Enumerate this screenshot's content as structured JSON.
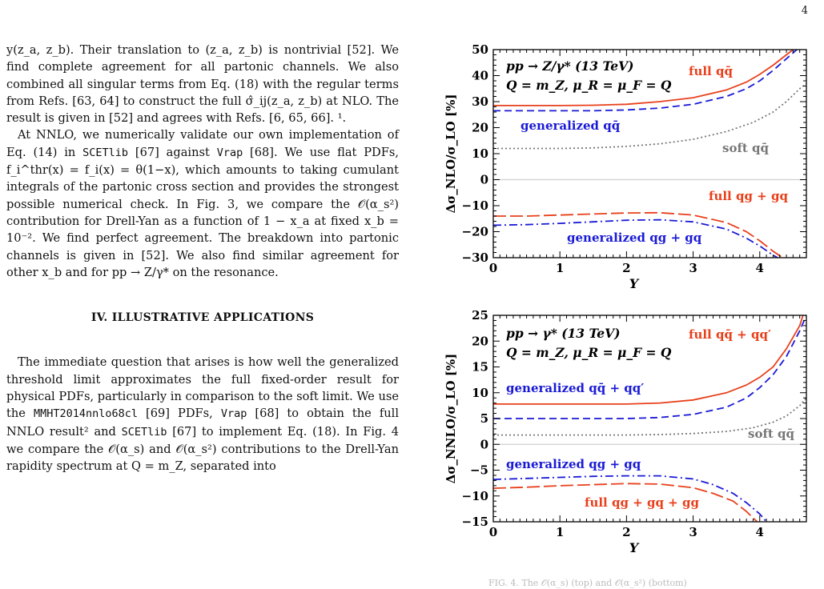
{
  "page_number": "4",
  "text": {
    "p1": "y(z_a, z_b). Their translation to (z_a, z_b) is nontrivial [52]. We find complete agreement for all partonic channels. We also combined all singular terms from Eq. (18) with the regular terms from Refs. [63, 64] to construct the full σ̂_ij(z_a, z_b) at NLO. The result is given in [52] and agrees with Refs. [6, 65, 66]. ¹.",
    "p2_a": "At NNLO, we numerically validate our own implementation of Eq. (14) in ",
    "p2_code1": "SCETlib",
    "p2_b": " [67] against ",
    "p2_code2": "Vrap",
    "p2_c": " [68]. We use flat PDFs, f_i^thr(x) = f_i(x) = θ(1−x), which amounts to taking cumulant integrals of the partonic cross section and provides the strongest possible numerical check. In Fig. 3, we compare the 𝒪(α_s²) contribution for Drell-Yan as a function of 1 − x_a at fixed x_b = 10⁻². We find perfect agreement. The breakdown into partonic channels is given in [52]. We also find similar agreement for other x_b and for pp → Z/γ* on the resonance.",
    "section_heading": "IV.   ILLUSTRATIVE APPLICATIONS",
    "p3_a": "The immediate question that arises is how well the generalized threshold limit approximates the full fixed-order result for physical PDFs, particularly in comparison to the soft limit. We use the ",
    "p3_code1": "MMHT2014nnlo68cl",
    "p3_b": " [69] PDFs, ",
    "p3_code2": "Vrap",
    "p3_c": " [68] to obtain the full NNLO result² and ",
    "p3_code3": "SCETlib",
    "p3_d": " [67] to implement Eq. (18). In Fig. 4 we compare the 𝒪(α_s) and 𝒪(α_s²) contributions to the Drell-Yan rapidity spectrum at Q = m_Z, separated into"
  },
  "chart_data": [
    {
      "type": "line",
      "ylabel": "Δσ_NLO/σ_LO [%]",
      "xlabel": "Y",
      "xlim": [
        0,
        4.7
      ],
      "ylim": [
        -30,
        50
      ],
      "xticks": [
        0,
        1,
        2,
        3,
        4
      ],
      "yticks": [
        -30,
        -20,
        -10,
        0,
        10,
        20,
        30,
        40,
        50
      ],
      "annotations": [
        "pp → Z/γ* (13 TeV)",
        "Q = m_Z, μ_R = μ_F = Q"
      ],
      "series": [
        {
          "name": "full qq̄",
          "color": "#e8401c",
          "dash": "solid",
          "x": [
            0,
            0.5,
            1,
            1.5,
            2,
            2.5,
            3,
            3.5,
            3.8,
            4.0,
            4.2,
            4.4,
            4.55
          ],
          "y": [
            28.5,
            28.5,
            28.5,
            28.6,
            29,
            30,
            31.5,
            34.5,
            37.5,
            40.5,
            44,
            48,
            51
          ]
        },
        {
          "name": "generalized qq̄",
          "color": "#1a1ad6",
          "dash": "dashed",
          "x": [
            0,
            0.5,
            1,
            1.5,
            2,
            2.5,
            3,
            3.5,
            3.8,
            4.0,
            4.2,
            4.4,
            4.6
          ],
          "y": [
            26.5,
            26.5,
            26.5,
            26.5,
            26.8,
            27.5,
            29,
            32,
            35,
            38,
            42,
            46.5,
            51
          ]
        },
        {
          "name": "soft qq̄",
          "color": "#777777",
          "dash": "dotted",
          "x": [
            0,
            0.5,
            1,
            1.5,
            2,
            2.5,
            3,
            3.5,
            3.9,
            4.2,
            4.4,
            4.6,
            4.7
          ],
          "y": [
            12,
            12,
            12,
            12.2,
            12.8,
            13.8,
            15.5,
            18.5,
            22,
            26,
            30,
            35,
            37
          ]
        },
        {
          "name": "full qg + gq",
          "color": "#e8401c",
          "dash": "longdash",
          "x": [
            0,
            0.5,
            1,
            1.5,
            2,
            2.5,
            3,
            3.5,
            3.8,
            4.0,
            4.2,
            4.4
          ],
          "y": [
            -14,
            -14,
            -13.6,
            -13.2,
            -12.8,
            -12.7,
            -13.6,
            -16.5,
            -20,
            -23.5,
            -27.5,
            -31
          ]
        },
        {
          "name": "generalized qg + gq",
          "color": "#1a1ad6",
          "dash": "dashdot",
          "x": [
            0,
            0.5,
            1,
            1.5,
            2,
            2.5,
            3,
            3.5,
            3.8,
            4.0,
            4.2,
            4.4
          ],
          "y": [
            -17.5,
            -17.3,
            -16.8,
            -16.2,
            -15.6,
            -15.4,
            -16.2,
            -19,
            -22.5,
            -25.5,
            -29,
            -32
          ]
        }
      ],
      "labels": [
        "full qq̄",
        "generalized qq̄",
        "soft qq̄",
        "full qg + gq",
        "generalized qg + gq"
      ]
    },
    {
      "type": "line",
      "ylabel": "Δσ_NNLO/σ_LO [%]",
      "xlabel": "Y",
      "xlim": [
        0,
        4.7
      ],
      "ylim": [
        -15,
        25
      ],
      "xticks": [
        0,
        1,
        2,
        3,
        4
      ],
      "yticks": [
        -15,
        -10,
        -5,
        0,
        5,
        10,
        15,
        20,
        25
      ],
      "annotations": [
        "pp → γ* (13 TeV)",
        "Q = m_Z, μ_R = μ_F = Q"
      ],
      "series": [
        {
          "name": "full qq̄ + qq′",
          "color": "#e8401c",
          "dash": "solid",
          "x": [
            0,
            0.5,
            1,
            1.5,
            2,
            2.5,
            3,
            3.5,
            3.8,
            4.0,
            4.2,
            4.4,
            4.6,
            4.65
          ],
          "y": [
            7.8,
            7.8,
            7.8,
            7.8,
            7.8,
            8,
            8.6,
            10,
            11.5,
            13,
            15,
            18.5,
            23,
            25
          ]
        },
        {
          "name": "generalized qq̄ + qq′",
          "color": "#1a1ad6",
          "dash": "dashed",
          "x": [
            0,
            0.5,
            1,
            1.5,
            2,
            2.5,
            3,
            3.5,
            3.8,
            4.0,
            4.2,
            4.4,
            4.6,
            4.7
          ],
          "y": [
            5,
            5,
            5,
            5,
            5,
            5.2,
            5.8,
            7.2,
            9,
            11,
            13.5,
            17,
            22,
            25
          ]
        },
        {
          "name": "soft qq̄",
          "color": "#777777",
          "dash": "dotted",
          "x": [
            0,
            0.5,
            1,
            1.5,
            2,
            2.5,
            3,
            3.5,
            3.9,
            4.2,
            4.4,
            4.6,
            4.7
          ],
          "y": [
            1.8,
            1.8,
            1.8,
            1.8,
            1.8,
            1.9,
            2.1,
            2.5,
            3.2,
            4.3,
            5.5,
            7.5,
            9
          ]
        },
        {
          "name": "full qg + gq + gg",
          "color": "#e8401c",
          "dash": "longdash",
          "x": [
            0,
            0.5,
            1,
            1.5,
            2,
            2.5,
            3,
            3.3,
            3.6,
            3.8,
            4.0
          ],
          "y": [
            -8.5,
            -8.3,
            -8,
            -7.8,
            -7.6,
            -7.7,
            -8.4,
            -9.5,
            -11,
            -13,
            -15.5
          ]
        },
        {
          "name": "generalized qg + gq",
          "color": "#1a1ad6",
          "dash": "dashdot",
          "x": [
            0,
            0.5,
            1,
            1.5,
            2,
            2.5,
            3,
            3.3,
            3.6,
            3.8,
            4.0,
            4.1
          ],
          "y": [
            -6.8,
            -6.6,
            -6.4,
            -6.2,
            -6.1,
            -6.1,
            -6.7,
            -7.8,
            -9.5,
            -11.3,
            -13.5,
            -15
          ]
        }
      ],
      "labels": [
        "full qq̄ + qq′",
        "generalized qq̄ + qq′",
        "soft qq̄",
        "generalized qg + gq",
        "full qg + gq + gg"
      ]
    }
  ],
  "caption_fragment": "FIG. 4. The 𝒪(α_s) (top) and 𝒪(α_s²) (bottom)"
}
